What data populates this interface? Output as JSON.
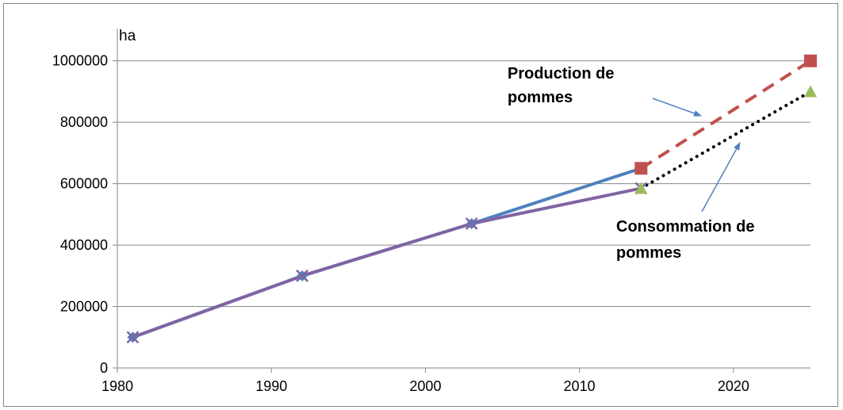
{
  "chart_data": {
    "type": "line",
    "ylabel": "ha",
    "xlabel": "",
    "title": "",
    "xlim": [
      1980,
      2025
    ],
    "ylim": [
      0,
      1100000
    ],
    "grid": "horizontal",
    "x_ticks": [
      1980,
      1990,
      2000,
      2010,
      2020
    ],
    "y_ticks": [
      0,
      200000,
      400000,
      600000,
      800000,
      1000000
    ],
    "series": [
      {
        "color": "#4F81BD",
        "style": "solid",
        "marker": "diamond",
        "x": [
          1981,
          1992,
          2003,
          2014
        ],
        "y": [
          100000,
          300000,
          470000,
          650000
        ]
      },
      {
        "color": "#8064A2",
        "style": "solid",
        "marker": "x",
        "x": [
          1981,
          1992,
          2003,
          2014
        ],
        "y": [
          100000,
          300000,
          470000,
          585000
        ]
      },
      {
        "color": "#C0504D",
        "style": "dashed",
        "marker": "square",
        "x": [
          2014,
          2025
        ],
        "y": [
          650000,
          1000000
        ]
      },
      {
        "color": "#000000",
        "style": "dotted",
        "marker": "triangle",
        "marker_color": "#9BBB59",
        "x": [
          2014,
          2025
        ],
        "y": [
          585000,
          900000
        ]
      }
    ],
    "annotations": [
      {
        "lines": [
          "Production de",
          "pommes"
        ],
        "arrow_color": "#4F81BD"
      },
      {
        "lines": [
          "Consommation de",
          "pommes"
        ],
        "arrow_color": "#4F81BD"
      }
    ]
  }
}
